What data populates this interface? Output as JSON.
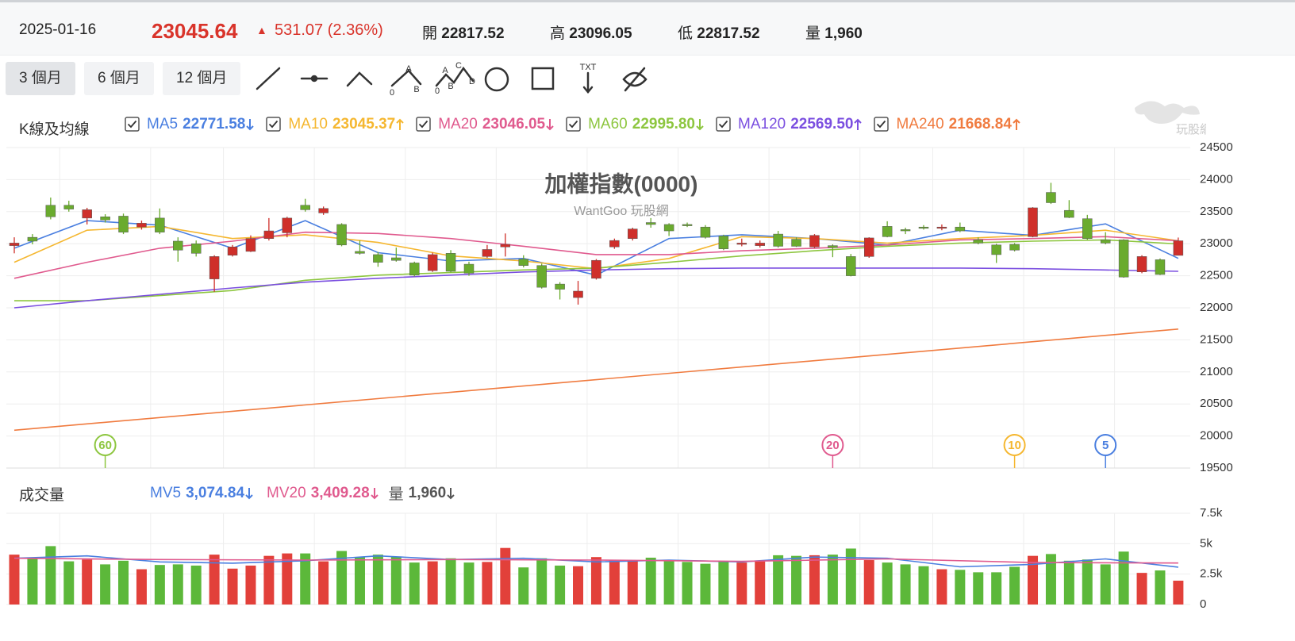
{
  "header": {
    "date": "2025-01-16",
    "price": "23045.64",
    "change": "531.07 (2.36%)",
    "stats": [
      {
        "label": "開",
        "value": "22817.52"
      },
      {
        "label": "高",
        "value": "23096.05"
      },
      {
        "label": "低",
        "value": "22817.52"
      },
      {
        "label": "量",
        "value": "1,960"
      }
    ]
  },
  "toolbar": {
    "periods": [
      "3 個月",
      "6 個月",
      "12 個月"
    ],
    "active": 0,
    "tool_texts": [
      "A",
      "0",
      "B",
      "A",
      "C",
      "0",
      "B",
      "D",
      "TXT"
    ]
  },
  "logo": {
    "text": "玩股網"
  },
  "chart_data": [
    {
      "type": "candlestick",
      "section": "K線及均線",
      "title": "加權指數(0000)",
      "subtitle": "WantGoo 玩股網",
      "up_color": "#cf2f2a",
      "down_color": "#6aab2e",
      "open": [
        22970,
        23100,
        23600,
        23600,
        23400,
        23420,
        23430,
        23260,
        23400,
        23040,
        23000,
        22450,
        22820,
        22880,
        23080,
        23170,
        23600,
        23480,
        23300,
        22880,
        22830,
        22780,
        22700,
        22580,
        22850,
        22680,
        22800,
        22950,
        22760,
        22660,
        22370,
        22160,
        22460,
        22950,
        23080,
        23330,
        23300,
        23300,
        23260,
        23120,
        22990,
        22970,
        23150,
        23070,
        22950,
        22970,
        22800,
        22800,
        23270,
        23220,
        23260,
        23240,
        23260,
        23060,
        22980,
        22990,
        23110,
        23800,
        23520,
        23390,
        23060,
        23060,
        22560,
        22750,
        22817.52
      ],
      "high": [
        23100,
        23150,
        23720,
        23670,
        23560,
        23460,
        23470,
        23360,
        23550,
        23100,
        23050,
        22820,
        22980,
        23130,
        23400,
        23420,
        23700,
        23580,
        23320,
        23050,
        22870,
        22940,
        22720,
        22860,
        22900,
        22720,
        22980,
        23160,
        22820,
        22690,
        22400,
        22420,
        22760,
        23080,
        23250,
        23400,
        23320,
        23330,
        23290,
        23140,
        23080,
        23050,
        23200,
        23100,
        23150,
        22990,
        22840,
        23100,
        23350,
        23250,
        23290,
        23300,
        23330,
        23100,
        23000,
        23010,
        23570,
        23950,
        23680,
        23450,
        23180,
        23070,
        22820,
        22770,
        23096.05
      ],
      "low": [
        22850,
        22990,
        23380,
        23500,
        23300,
        23330,
        23150,
        23220,
        23150,
        22720,
        22800,
        22250,
        22800,
        22870,
        23050,
        23100,
        23500,
        23450,
        22960,
        22830,
        22640,
        22720,
        22490,
        22560,
        22550,
        22500,
        22780,
        22800,
        22630,
        22300,
        22130,
        22050,
        22440,
        22920,
        23050,
        23250,
        23120,
        23260,
        23080,
        22900,
        22960,
        22940,
        22940,
        22950,
        22930,
        22790,
        22490,
        22780,
        23100,
        23150,
        23220,
        23210,
        23180,
        22990,
        22700,
        22880,
        23100,
        23620,
        23400,
        23060,
        22990,
        22470,
        22540,
        22510,
        22817.52
      ],
      "close": [
        23010,
        23040,
        23420,
        23540,
        23530,
        23370,
        23180,
        23320,
        23180,
        22900,
        22850,
        22800,
        22950,
        23080,
        23200,
        23400,
        23530,
        23550,
        22980,
        22850,
        22710,
        22740,
        22510,
        22830,
        22570,
        22540,
        22910,
        22990,
        22660,
        22320,
        22290,
        22260,
        22740,
        23050,
        23230,
        23300,
        23200,
        23280,
        23100,
        22920,
        23010,
        23010,
        22960,
        22960,
        23130,
        22940,
        22500,
        23090,
        23110,
        23200,
        23240,
        23260,
        23200,
        23010,
        22830,
        22900,
        23560,
        23640,
        23410,
        23080,
        23010,
        22480,
        22800,
        22520,
        23045.64
      ],
      "series": [
        {
          "name": "MA5",
          "color": "#4a7fe0",
          "legend_value": "22771.58",
          "trend": "down",
          "x": [
            0,
            4,
            8,
            12,
            16,
            20,
            24,
            28,
            32,
            36,
            40,
            44,
            48,
            52,
            56,
            60,
            64
          ],
          "values": [
            22930,
            23360,
            23290,
            22930,
            23360,
            22860,
            22730,
            22770,
            22510,
            23080,
            23140,
            23080,
            22980,
            23210,
            23130,
            23310,
            22771.58
          ]
        },
        {
          "name": "MA10",
          "color": "#f5b730",
          "legend_value": "23045.37",
          "trend": "up",
          "x": [
            0,
            4,
            8,
            12,
            16,
            20,
            24,
            28,
            32,
            36,
            40,
            44,
            48,
            52,
            56,
            60,
            64
          ],
          "values": [
            22710,
            23210,
            23270,
            23080,
            23140,
            23020,
            22810,
            22730,
            22610,
            22770,
            23110,
            23080,
            23010,
            23080,
            23130,
            23210,
            23045.37
          ]
        },
        {
          "name": "MA20",
          "color": "#e05a8e",
          "legend_value": "23046.05",
          "trend": "down",
          "x": [
            0,
            4,
            8,
            12,
            16,
            20,
            24,
            28,
            32,
            36,
            40,
            44,
            48,
            52,
            56,
            60,
            64
          ],
          "values": [
            22460,
            22710,
            22930,
            23040,
            23180,
            23160,
            23080,
            22960,
            22830,
            22830,
            22890,
            22930,
            22980,
            23060,
            23080,
            23110,
            23046.05
          ]
        },
        {
          "name": "MA60",
          "color": "#8dc63f",
          "legend_value": "22995.80",
          "trend": "down",
          "x": [
            0,
            4,
            8,
            12,
            16,
            20,
            24,
            28,
            32,
            36,
            40,
            44,
            48,
            52,
            56,
            60,
            64
          ],
          "values": [
            22110,
            22110,
            22190,
            22270,
            22430,
            22510,
            22550,
            22590,
            22620,
            22710,
            22810,
            22890,
            22960,
            23010,
            23040,
            23060,
            22995.8
          ]
        },
        {
          "name": "MA120",
          "color": "#7b4fe0",
          "legend_value": "22569.50",
          "trend": "up",
          "x": [
            0,
            4,
            8,
            12,
            16,
            20,
            24,
            28,
            32,
            36,
            40,
            44,
            48,
            52,
            56,
            60,
            64
          ],
          "values": [
            22000,
            22110,
            22210,
            22310,
            22400,
            22460,
            22510,
            22560,
            22590,
            22610,
            22620,
            22620,
            22620,
            22620,
            22610,
            22590,
            22569.5
          ]
        },
        {
          "name": "MA240",
          "color": "#f07b3f",
          "legend_value": "21668.84",
          "trend": "up",
          "x": [
            0,
            64
          ],
          "values": [
            20090,
            21668.84
          ]
        }
      ],
      "ylim": [
        19500,
        24500
      ],
      "yticks": [
        19500,
        20000,
        20500,
        21000,
        21500,
        22000,
        22500,
        23000,
        23500,
        24000,
        24500
      ],
      "xgrid": [
        3,
        8,
        12,
        17,
        22,
        27,
        32,
        37,
        42,
        47,
        51,
        56,
        61
      ],
      "grid": true,
      "markers": [
        {
          "x": 5,
          "label": 60,
          "color": "#8dc63f"
        },
        {
          "x": 45,
          "label": 20,
          "color": "#e05a8e"
        },
        {
          "x": 55,
          "label": 10,
          "color": "#f5b730"
        },
        {
          "x": 60,
          "label": 5,
          "color": "#4a7fe0"
        }
      ]
    },
    {
      "type": "bar",
      "title": "成交量",
      "up_color": "#e2403a",
      "down_color": "#5cb83a",
      "values": [
        4100,
        3750,
        4800,
        3550,
        3700,
        3300,
        3600,
        2900,
        3250,
        3300,
        3200,
        4100,
        2950,
        3200,
        4000,
        4200,
        4200,
        3550,
        4400,
        3900,
        4100,
        3950,
        3450,
        3550,
        3800,
        3450,
        3500,
        4650,
        3050,
        3800,
        3200,
        3150,
        3900,
        3650,
        3650,
        3850,
        3600,
        3500,
        3350,
        3500,
        3450,
        3550,
        4050,
        4000,
        4050,
        4100,
        4600,
        3650,
        3450,
        3300,
        3150,
        2900,
        2850,
        2650,
        2650,
        3100,
        4000,
        4150,
        3600,
        3700,
        3300,
        4350,
        2600,
        2800,
        1960
      ],
      "volume_name": "量",
      "volume_label": "1,960",
      "volume_trend": "down",
      "series": [
        {
          "name": "MV5",
          "color": "#4a7fe0",
          "legend_value": "3,074.84",
          "trend": "down",
          "x": [
            0,
            4,
            8,
            12,
            16,
            20,
            24,
            28,
            32,
            36,
            40,
            44,
            48,
            52,
            56,
            60,
            64
          ],
          "values": [
            3800,
            4000,
            3500,
            3400,
            3600,
            4000,
            3700,
            3800,
            3500,
            3650,
            3500,
            3900,
            3800,
            3100,
            3300,
            3750,
            3074.84
          ]
        },
        {
          "name": "MV20",
          "color": "#e05a8e",
          "legend_value": "3,409.28",
          "trend": "down",
          "x": [
            0,
            8,
            16,
            24,
            32,
            40,
            48,
            56,
            64
          ],
          "values": [
            3800,
            3700,
            3650,
            3700,
            3650,
            3550,
            3750,
            3450,
            3409.28
          ]
        }
      ],
      "ylim": [
        0,
        7500
      ],
      "yticks": [
        0,
        {
          "value": 2500,
          "label": "2.5k"
        },
        {
          "value": 5000,
          "label": "5k"
        },
        {
          "value": 7500,
          "label": "7.5k"
        }
      ]
    }
  ]
}
